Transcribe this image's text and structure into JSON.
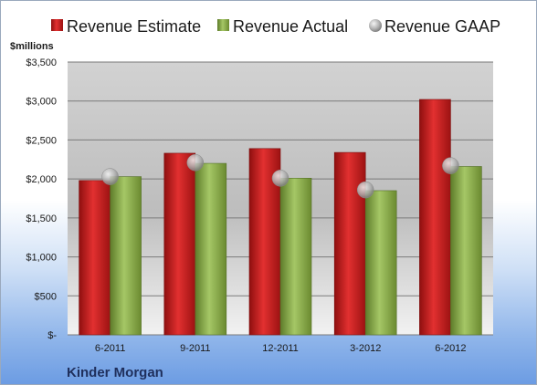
{
  "chart_data": {
    "type": "bar",
    "ylabel": "$millions",
    "categories": [
      "6-2011",
      "9-2011",
      "12-2011",
      "3-2012",
      "6-2012"
    ],
    "series": [
      {
        "name": "Revenue Estimate",
        "kind": "bar",
        "color": "#cc1f1f",
        "values": [
          1980,
          2330,
          2390,
          2340,
          3020
        ]
      },
      {
        "name": "Revenue Actual",
        "kind": "bar",
        "color": "#8db04a",
        "values": [
          2030,
          2200,
          2010,
          1850,
          2160
        ]
      },
      {
        "name": "Revenue GAAP",
        "kind": "marker",
        "color": "#a8a8a8",
        "values": [
          2030,
          2210,
          2010,
          1860,
          2170
        ]
      }
    ],
    "ylim": [
      0,
      3500
    ],
    "yticks": [
      0,
      500,
      1000,
      1500,
      2000,
      2500,
      3000,
      3500
    ],
    "ytick_labels": [
      "$-",
      "$500",
      "$1,000",
      "$1,500",
      "$2,000",
      "$2,500",
      "$3,000",
      "$3,500"
    ],
    "grid": true,
    "legend_position": "top",
    "caption": "Kinder Morgan"
  }
}
